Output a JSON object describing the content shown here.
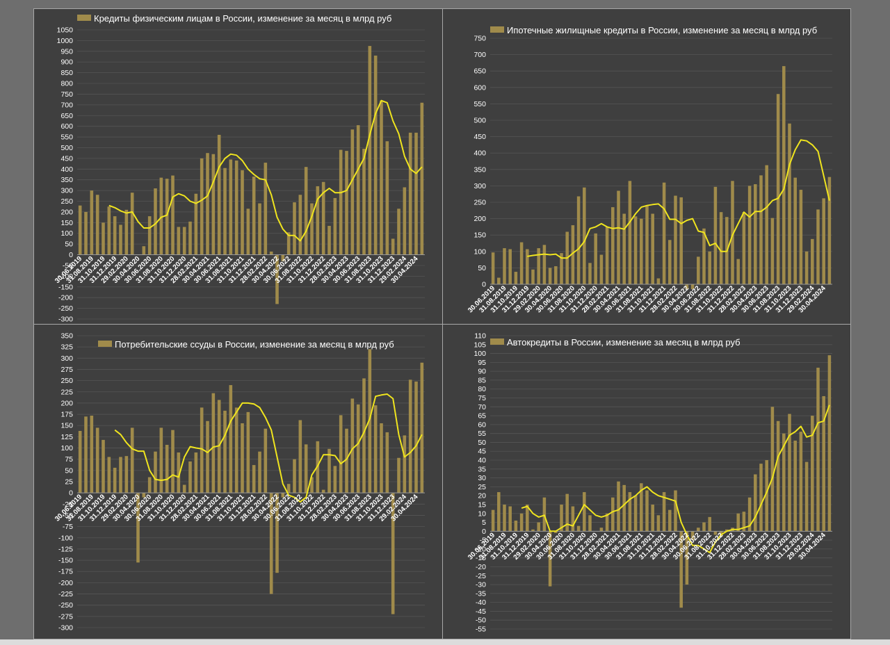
{
  "colors": {
    "bar": "#a08b4b",
    "line": "#f0e51e",
    "text": "#ffffff",
    "grid": "#555555",
    "background": "#3f3f3f"
  },
  "chart_data": [
    {
      "type": "bar",
      "title": "Кредиты физическим лицам  в России, изменение за месяц в млрд руб",
      "legend_position": "top",
      "grid": true,
      "ylim": [
        -300,
        1050
      ],
      "ystep": 50,
      "x_tick_labels": [
        "30.06.2019",
        "31.08.2019",
        "31.10.2019",
        "31.12.2019",
        "29.02.2020",
        "30.04.2020",
        "30.06.2020",
        "31.08.2020",
        "31.10.2020",
        "31.12.2020",
        "28.02.2021",
        "30.04.2021",
        "30.06.2021",
        "31.08.2021",
        "31.10.2021",
        "31.12.2021",
        "28.02.2022",
        "30.04.2022",
        "30.06.2022",
        "31.08.2022",
        "31.10.2022",
        "31.12.2022",
        "28.02.2023",
        "30.04.2023",
        "30.06.2023",
        "31.08.2023",
        "31.10.2023",
        "31.12.2023",
        "29.02.2024",
        "30.04.2024"
      ],
      "series": [
        {
          "kind": "bar",
          "values": [
            230,
            200,
            300,
            280,
            150,
            225,
            180,
            140,
            210,
            290,
            0,
            40,
            180,
            310,
            360,
            355,
            370,
            130,
            130,
            155,
            285,
            450,
            475,
            470,
            560,
            405,
            445,
            440,
            395,
            215,
            365,
            240,
            430,
            15,
            -230,
            -30,
            105,
            245,
            280,
            410,
            240,
            320,
            340,
            135,
            265,
            490,
            485,
            585,
            605,
            495,
            975,
            930,
            720,
            530,
            75,
            215,
            315,
            570,
            570,
            710
          ]
        },
        {
          "kind": "line",
          "values": [
            null,
            null,
            null,
            null,
            null,
            230,
            220,
            205,
            195,
            200,
            155,
            125,
            125,
            145,
            175,
            185,
            270,
            285,
            275,
            250,
            240,
            255,
            275,
            340,
            410,
            450,
            470,
            465,
            440,
            400,
            375,
            355,
            350,
            280,
            175,
            120,
            90,
            90,
            65,
            110,
            180,
            260,
            290,
            310,
            290,
            290,
            300,
            350,
            400,
            450,
            560,
            660,
            720,
            710,
            625,
            565,
            460,
            400,
            380,
            410
          ]
        }
      ]
    },
    {
      "type": "bar",
      "title": "Ипотечные жилищные кредиты в России, изменение за месяц в млрд руб",
      "legend_position": "top",
      "grid": true,
      "ylim": [
        0,
        750
      ],
      "ystep": 50,
      "x_tick_labels": [
        "30.06.2019",
        "31.08.2019",
        "31.10.2019",
        "31.12.2019",
        "29.02.2020",
        "30.04.2020",
        "30.06.2020",
        "31.08.2020",
        "31.10.2020",
        "31.12.2020",
        "28.02.2021",
        "30.04.2021",
        "30.06.2021",
        "31.08.2021",
        "31.10.2021",
        "31.12.2021",
        "28.02.2022",
        "30.04.2022",
        "30.06.2022",
        "31.08.2022",
        "31.10.2022",
        "31.12.2022",
        "28.02.2023",
        "30.04.2023",
        "30.06.2023",
        "31.08.2023",
        "31.10.2023",
        "31.12.2023",
        "29.02.2024",
        "30.04.2024"
      ],
      "series": [
        {
          "kind": "bar",
          "values": [
            97,
            20,
            110,
            107,
            38,
            128,
            107,
            45,
            110,
            120,
            50,
            55,
            95,
            160,
            180,
            268,
            295,
            65,
            155,
            90,
            175,
            235,
            285,
            215,
            315,
            207,
            200,
            240,
            215,
            18,
            310,
            135,
            270,
            265,
            -15,
            -15,
            84,
            170,
            100,
            297,
            220,
            205,
            315,
            77,
            220,
            300,
            305,
            332,
            363,
            202,
            580,
            665,
            490,
            325,
            288,
            100,
            138,
            228,
            262,
            327
          ]
        },
        {
          "kind": "line",
          "values": [
            null,
            null,
            null,
            null,
            null,
            null,
            85,
            88,
            90,
            92,
            90,
            92,
            80,
            80,
            95,
            108,
            130,
            170,
            175,
            185,
            175,
            170,
            172,
            168,
            190,
            215,
            235,
            240,
            243,
            245,
            230,
            198,
            198,
            185,
            195,
            200,
            162,
            158,
            118,
            125,
            100,
            100,
            150,
            185,
            220,
            205,
            222,
            222,
            235,
            255,
            262,
            290,
            365,
            410,
            440,
            437,
            425,
            405,
            330,
            255
          ]
        }
      ]
    },
    {
      "type": "bar",
      "title": "Потребительские ссуды в России, изменение за месяц в млрд руб",
      "legend_position": "top",
      "grid": true,
      "ylim": [
        -300,
        350
      ],
      "ystep": 25,
      "x_tick_labels": [
        "30.06.2019",
        "31.08.2019",
        "31.10.2019",
        "31.12.2019",
        "29.02.2020",
        "30.04.2020",
        "30.06.2020",
        "31.08.2020",
        "31.10.2020",
        "31.12.2020",
        "28.02.2021",
        "30.04.2021",
        "30.06.2021",
        "31.08.2021",
        "31.10.2021",
        "31.12.2021",
        "28.02.2022",
        "30.04.2022",
        "30.06.2022",
        "31.08.2022",
        "31.10.2022",
        "31.12.2022",
        "28.02.2023",
        "30.04.2023",
        "30.06.2023",
        "31.08.2023",
        "31.10.2023",
        "31.12.2023",
        "29.02.2024",
        "30.04.2024"
      ],
      "series": [
        {
          "kind": "bar",
          "values": [
            138,
            170,
            172,
            145,
            118,
            80,
            56,
            80,
            82,
            145,
            -155,
            -10,
            35,
            92,
            145,
            107,
            140,
            90,
            18,
            70,
            90,
            190,
            160,
            222,
            207,
            183,
            240,
            190,
            155,
            180,
            62,
            92,
            143,
            -225,
            -178,
            -10,
            20,
            75,
            162,
            108,
            35,
            115,
            7,
            98,
            60,
            173,
            143,
            210,
            197,
            255,
            320,
            195,
            155,
            135,
            -270,
            78,
            128,
            252,
            248,
            290
          ]
        },
        {
          "kind": "line",
          "values": [
            null,
            null,
            null,
            null,
            null,
            null,
            140,
            130,
            112,
            98,
            93,
            93,
            50,
            30,
            28,
            30,
            40,
            35,
            80,
            103,
            100,
            98,
            90,
            102,
            105,
            128,
            160,
            180,
            200,
            200,
            198,
            190,
            168,
            140,
            80,
            20,
            -5,
            -10,
            -20,
            -10,
            40,
            60,
            85,
            85,
            83,
            65,
            75,
            98,
            110,
            135,
            165,
            215,
            218,
            220,
            210,
            130,
            80,
            90,
            105,
            130
          ]
        }
      ]
    },
    {
      "type": "bar",
      "title": "Автокредиты в России, изменение за месяц в млрд руб",
      "legend_position": "top",
      "grid": true,
      "ylim": [
        -55,
        110
      ],
      "ystep": 5,
      "x_tick_labels": [
        "30.06.2019",
        "31.08.2019",
        "31.10.2019",
        "31.12.2019",
        "29.02.2020",
        "30.04.2020",
        "30.06.2020",
        "31.08.2020",
        "31.10.2020",
        "31.12.2020",
        "28.02.2021",
        "30.04.2021",
        "30.06.2021",
        "31.08.2021",
        "31.10.2021",
        "31.12.2021",
        "28.02.2022",
        "30.04.2022",
        "30.06.2022",
        "31.08.2022",
        "31.10.2022",
        "31.12.2022",
        "28.02.2023",
        "30.04.2023",
        "30.06.2023",
        "31.08.2023",
        "31.10.2023",
        "31.12.2023",
        "29.02.2024",
        "30.04.2024"
      ],
      "series": [
        {
          "kind": "bar",
          "values": [
            12,
            22,
            15,
            14,
            6,
            10,
            15,
            1,
            5,
            19,
            -31,
            -1,
            15,
            21,
            14,
            3,
            22,
            9,
            0,
            2,
            10,
            19,
            28,
            26,
            22,
            20,
            27,
            23,
            15,
            9,
            22,
            12,
            23,
            -43,
            -30,
            -5,
            2,
            5,
            8,
            -2,
            -3,
            1,
            2,
            10,
            11,
            19,
            32,
            38,
            40,
            70,
            62,
            55,
            66,
            51,
            56,
            39,
            65,
            92,
            76,
            99
          ]
        },
        {
          "kind": "line",
          "values": [
            null,
            null,
            null,
            null,
            null,
            13,
            14,
            10,
            8,
            9,
            0,
            0,
            2,
            4,
            3,
            9,
            15,
            12,
            9,
            8,
            9,
            11,
            12,
            15,
            18,
            20,
            23,
            25,
            22,
            20,
            19,
            18,
            17,
            5,
            -2,
            -8,
            -8,
            -10,
            -12,
            -6,
            -2,
            0,
            1,
            1,
            2,
            3,
            8,
            15,
            22,
            30,
            42,
            48,
            54,
            56,
            59,
            53,
            54,
            61,
            62,
            71
          ]
        }
      ]
    }
  ]
}
